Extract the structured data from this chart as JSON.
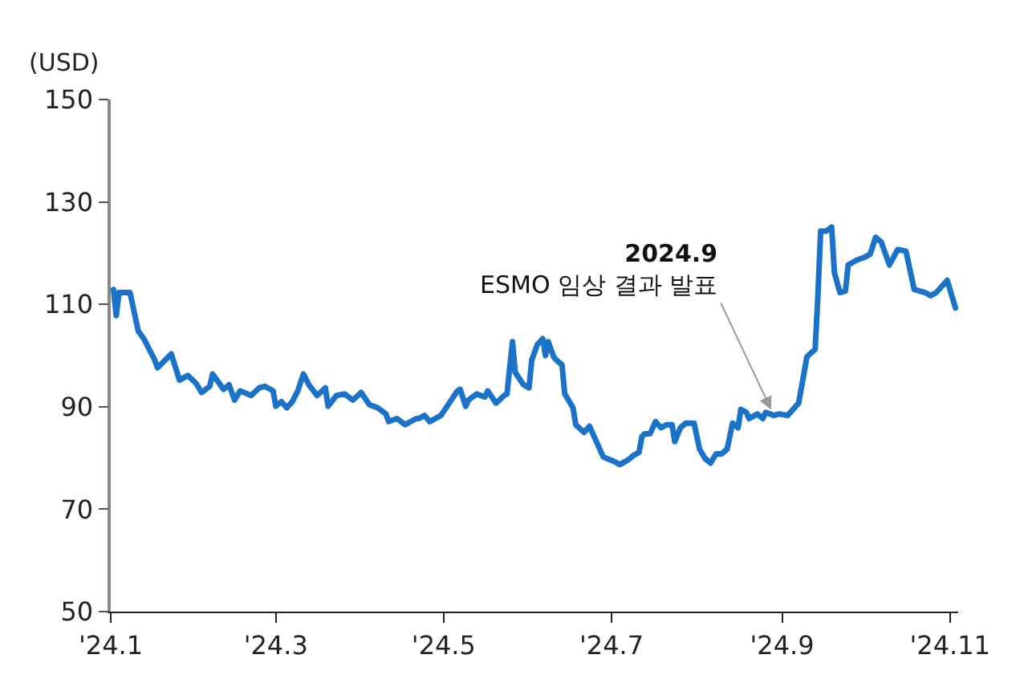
{
  "chart_data": {
    "type": "line",
    "ylabel": "(USD)",
    "x": [
      "2024-01-02",
      "2024-01-03",
      "2024-01-04",
      "2024-01-08",
      "2024-01-11",
      "2024-01-13",
      "2024-01-17",
      "2024-01-18",
      "2024-01-23",
      "2024-01-26",
      "2024-01-29",
      "2024-02-01",
      "2024-02-03",
      "2024-02-06",
      "2024-02-07",
      "2024-02-11",
      "2024-02-13",
      "2024-02-15",
      "2024-02-17",
      "2024-02-21",
      "2024-02-24",
      "2024-02-26",
      "2024-02-29",
      "2024-03-01",
      "2024-03-03",
      "2024-03-05",
      "2024-03-07",
      "2024-03-09",
      "2024-03-11",
      "2024-03-13",
      "2024-03-16",
      "2024-03-19",
      "2024-03-20",
      "2024-03-23",
      "2024-03-26",
      "2024-03-29",
      "2024-04-01",
      "2024-04-04",
      "2024-04-07",
      "2024-04-10",
      "2024-04-11",
      "2024-04-14",
      "2024-04-17",
      "2024-04-19",
      "2024-04-21",
      "2024-04-22",
      "2024-04-24",
      "2024-04-26",
      "2024-04-30",
      "2024-05-03",
      "2024-05-06",
      "2024-05-07",
      "2024-05-09",
      "2024-05-10",
      "2024-05-13",
      "2024-05-16",
      "2024-05-17",
      "2024-05-20",
      "2024-05-23",
      "2024-05-24",
      "2024-05-26",
      "2024-05-27",
      "2024-05-30",
      "2024-06-01",
      "2024-06-02",
      "2024-06-04",
      "2024-06-06",
      "2024-06-07",
      "2024-06-08",
      "2024-06-10",
      "2024-06-11",
      "2024-06-13",
      "2024-06-14",
      "2024-06-17",
      "2024-06-18",
      "2024-06-21",
      "2024-06-23",
      "2024-06-25",
      "2024-06-28",
      "2024-07-02",
      "2024-07-04",
      "2024-07-07",
      "2024-07-09",
      "2024-07-11",
      "2024-07-12",
      "2024-07-13",
      "2024-07-15",
      "2024-07-17",
      "2024-07-19",
      "2024-07-21",
      "2024-07-23",
      "2024-07-24",
      "2024-07-26",
      "2024-07-28",
      "2024-07-31",
      "2024-08-02",
      "2024-08-04",
      "2024-08-06",
      "2024-08-08",
      "2024-08-10",
      "2024-08-12",
      "2024-08-14",
      "2024-08-16",
      "2024-08-17",
      "2024-08-19",
      "2024-08-20",
      "2024-08-22",
      "2024-08-23",
      "2024-08-25",
      "2024-08-26",
      "2024-08-29",
      "2024-08-31",
      "2024-09-03",
      "2024-09-06",
      "2024-09-07",
      "2024-09-10",
      "2024-09-11",
      "2024-09-13",
      "2024-09-14",
      "2024-09-15",
      "2024-09-17",
      "2024-09-19",
      "2024-09-20",
      "2024-09-22",
      "2024-09-24",
      "2024-09-25",
      "2024-09-27",
      "2024-09-28",
      "2024-10-01",
      "2024-10-03",
      "2024-10-05",
      "2024-10-07",
      "2024-10-10",
      "2024-10-13",
      "2024-10-16",
      "2024-10-19",
      "2024-10-23",
      "2024-10-25",
      "2024-10-27",
      "2024-10-31",
      "2024-11-03"
    ],
    "series": [
      {
        "color": "#1a73c9",
        "values": [
          112.9,
          107.8,
          112.3,
          112.3,
          104.8,
          103.3,
          99.1,
          97.6,
          100.3,
          95.2,
          96.1,
          94.6,
          92.8,
          94.0,
          96.4,
          93.4,
          94.3,
          91.3,
          93.1,
          92.2,
          93.7,
          94.0,
          93.1,
          90.1,
          91.0,
          89.8,
          91.0,
          93.1,
          96.4,
          94.3,
          92.2,
          93.7,
          90.1,
          92.2,
          92.5,
          91.3,
          92.8,
          90.4,
          89.8,
          88.6,
          87.1,
          87.7,
          86.5,
          87.1,
          87.7,
          87.7,
          88.3,
          87.1,
          88.3,
          90.7,
          93.1,
          93.4,
          90.1,
          91.3,
          92.5,
          91.9,
          93.1,
          90.7,
          92.2,
          92.5,
          102.7,
          96.7,
          94.3,
          93.7,
          99.1,
          102.1,
          103.3,
          100.0,
          102.7,
          99.7,
          99.1,
          98.2,
          92.5,
          89.8,
          86.5,
          85.0,
          86.2,
          83.8,
          80.2,
          79.3,
          78.7,
          79.6,
          80.5,
          81.1,
          84.1,
          84.7,
          84.7,
          87.1,
          85.9,
          86.5,
          86.5,
          83.2,
          85.9,
          86.8,
          86.8,
          81.7,
          79.9,
          79.0,
          80.8,
          80.8,
          81.7,
          86.8,
          85.9,
          89.5,
          88.9,
          87.7,
          88.3,
          88.6,
          87.7,
          88.9,
          88.3,
          88.6,
          88.3,
          90.1,
          90.7,
          99.7,
          100.3,
          101.2,
          111.7,
          124.3,
          124.3,
          125.1,
          116.2,
          112.3,
          112.6,
          117.7,
          118.3,
          118.6,
          119.2,
          119.8,
          123.1,
          122.2,
          117.7,
          120.7,
          120.4,
          112.9,
          112.3,
          111.7,
          112.3,
          114.7,
          109.3
        ]
      }
    ],
    "ylim": [
      50,
      150
    ],
    "yticks": [
      50,
      70,
      90,
      110,
      130,
      150
    ],
    "xlim": [
      "2024-01-01",
      "2024-11-04"
    ],
    "xticks": [
      {
        "value": "2024-01-01",
        "label": "'24.1"
      },
      {
        "value": "2024-03-01",
        "label": "'24.3"
      },
      {
        "value": "2024-05-01",
        "label": "'24.5"
      },
      {
        "value": "2024-07-01",
        "label": "'24.7"
      },
      {
        "value": "2024-09-01",
        "label": "'24.9"
      },
      {
        "value": "2024-11-01",
        "label": "'24.11"
      }
    ],
    "annotations": [
      {
        "text": "2024.9\nESMO 임상 결과 발표",
        "x": "2024-08-29",
        "y": 88.3
      }
    ],
    "marker": "none",
    "line_style": "solid"
  }
}
